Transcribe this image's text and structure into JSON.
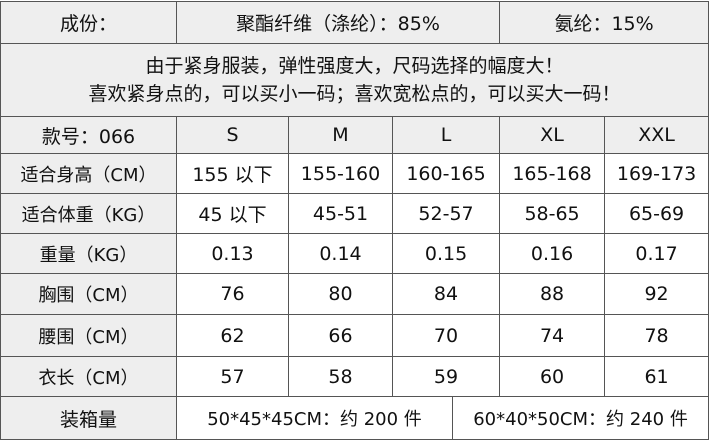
{
  "composition": {
    "label": "成份：",
    "material1": "聚酯纤维（涤纶）：85%",
    "material2": "氨纶：15%"
  },
  "note": {
    "line1": "由于紧身服装，弹性强度大，尺码选择的幅度大！",
    "line2": "喜欢紧身点的，可以买小一码；喜欢宽松点的，可以买大一码！"
  },
  "header": {
    "style_no": "款号：066",
    "sizes": [
      "S",
      "M",
      "L",
      "XL",
      "XXL"
    ]
  },
  "rows": [
    {
      "label": "适合身高（CM）",
      "values": [
        "155 以下",
        "155-160",
        "160-165",
        "165-168",
        "169-173"
      ]
    },
    {
      "label": "适合体重（KG）",
      "values": [
        "45 以下",
        "45-51",
        "52-57",
        "58-65",
        "65-69"
      ]
    },
    {
      "label": "重量（KG）",
      "values": [
        "0.13",
        "0.14",
        "0.15",
        "0.16",
        "0.17"
      ]
    },
    {
      "label": "胸围（CM）",
      "values": [
        "76",
        "80",
        "84",
        "88",
        "92"
      ]
    },
    {
      "label": "腰围（CM）",
      "values": [
        "62",
        "66",
        "70",
        "74",
        "78"
      ]
    },
    {
      "label": "衣长（CM）",
      "values": [
        "57",
        "58",
        "59",
        "60",
        "61"
      ]
    }
  ],
  "packing": {
    "label": "装箱量",
    "option1": "50*45*45CM：约 200 件",
    "option2": "60*40*50CM：约 240 件"
  }
}
